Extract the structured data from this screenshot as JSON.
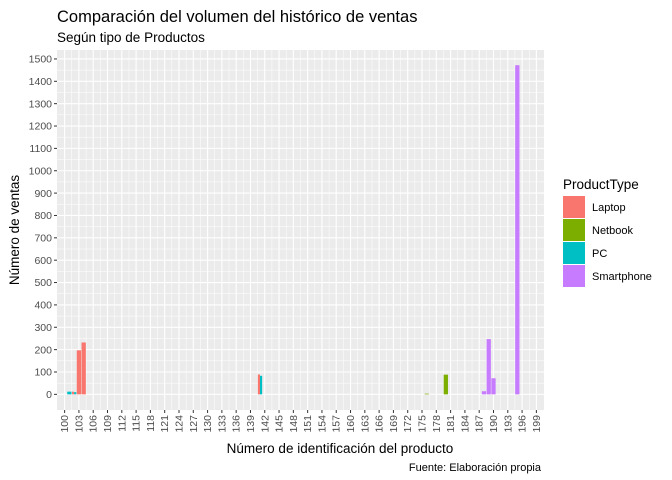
{
  "chart_data": {
    "type": "bar",
    "title": "Comparación del volumen del histórico de ventas",
    "subtitle": "Según tipo de Productos",
    "xlabel": "Número de identificación del producto",
    "ylabel": "Número de ventas",
    "caption": "Fuente: Elaboración propia",
    "legend_title": "ProductType",
    "legend_position": "right",
    "ylim": [
      -70,
      1540
    ],
    "xlim": [
      98.4,
      200.6
    ],
    "y_ticks": [
      0,
      100,
      200,
      300,
      400,
      500,
      600,
      700,
      800,
      900,
      1000,
      1100,
      1200,
      1300,
      1400,
      1500
    ],
    "x_ticks": [
      100,
      103,
      106,
      109,
      112,
      115,
      118,
      121,
      124,
      127,
      130,
      133,
      136,
      139,
      142,
      145,
      148,
      151,
      154,
      157,
      160,
      163,
      166,
      169,
      172,
      175,
      178,
      181,
      184,
      187,
      190,
      193,
      196,
      199
    ],
    "grid": true,
    "series": [
      {
        "name": "Laptop",
        "color": "#F8766D"
      },
      {
        "name": "Netbook",
        "color": "#7CAE00"
      },
      {
        "name": "PC",
        "color": "#00BFC4"
      },
      {
        "name": "Smartphone",
        "color": "#C77CFF"
      }
    ],
    "bars": [
      {
        "x": 101,
        "series": "PC",
        "value": 12
      },
      {
        "x": 102,
        "series": "PC",
        "value": 10
      },
      {
        "x": 102,
        "series": "Laptop",
        "value": 12
      },
      {
        "x": 103,
        "series": "Laptop",
        "value": 197
      },
      {
        "x": 104,
        "series": "Laptop",
        "value": 232
      },
      {
        "x": 141,
        "series": "PC",
        "value": 83
      },
      {
        "x": 141,
        "series": "Laptop",
        "value": 89
      },
      {
        "x": 176,
        "series": "Netbook",
        "value": 3
      },
      {
        "x": 180,
        "series": "Netbook",
        "value": 88
      },
      {
        "x": 188,
        "series": "Smartphone",
        "value": 14
      },
      {
        "x": 189,
        "series": "Smartphone",
        "value": 247
      },
      {
        "x": 190,
        "series": "Smartphone",
        "value": 72
      },
      {
        "x": 195,
        "series": "Smartphone",
        "value": 1472
      }
    ]
  }
}
